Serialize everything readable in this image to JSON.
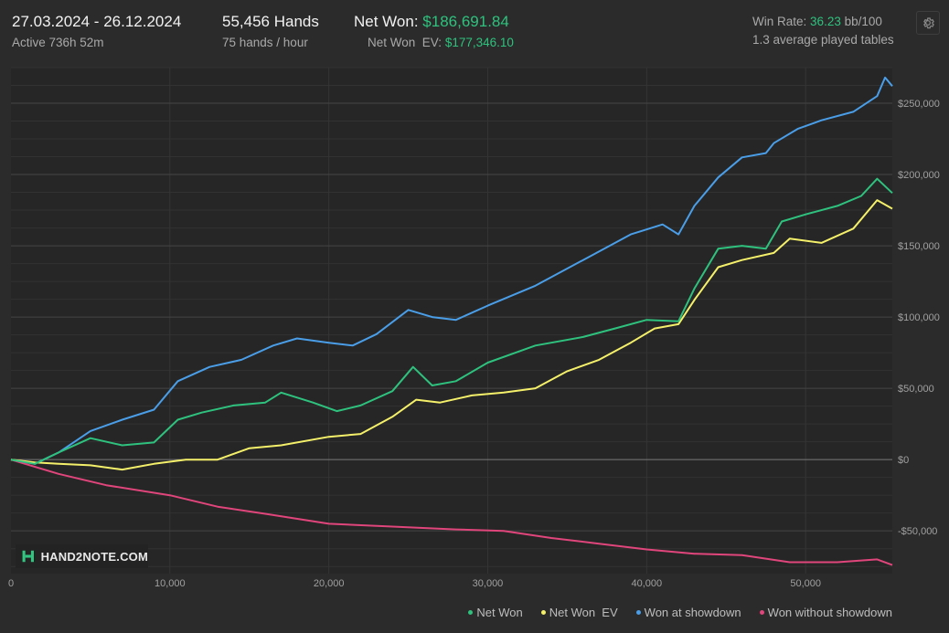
{
  "header": {
    "date_range": "27.03.2024 - 26.12.2024",
    "active_time": "Active 736h 52m",
    "hands_total": "55,456 Hands",
    "hands_rate": "75 hands / hour",
    "net_won_label": "Net Won:",
    "net_won_value": "$186,691.84",
    "net_won_ev_label": "Net Won  EV:",
    "net_won_ev_value": "$177,346.10",
    "win_rate_label": "Win Rate:",
    "win_rate_value": "36.23",
    "win_rate_unit": "bb/100",
    "avg_tables": "1.3 average played tables"
  },
  "logo": {
    "text": "HAND2NOTE.COM"
  },
  "colors": {
    "net_won": "#2ec27e",
    "net_won_ev": "#f5f06a",
    "showdown": "#4a9ee8",
    "non_showdown": "#e0457b",
    "positive": "#2ec27e"
  },
  "chart_data": {
    "type": "line",
    "xlim": [
      0,
      55456
    ],
    "ylim": [
      -80000,
      275000
    ],
    "x_ticks": [
      0,
      10000,
      20000,
      30000,
      40000,
      50000
    ],
    "x_tick_labels": [
      "0",
      "10,000",
      "20,000",
      "30,000",
      "40,000",
      "50,000"
    ],
    "y_ticks": [
      -50000,
      0,
      50000,
      100000,
      150000,
      200000,
      250000
    ],
    "y_tick_labels": [
      "-$50,000",
      "$0",
      "$50,000",
      "$100,000",
      "$150,000",
      "$200,000",
      "$250,000"
    ],
    "grid": true,
    "legend_position": "bottom-right",
    "series": [
      {
        "name": "Net Won",
        "color": "#2ec27e",
        "points": [
          [
            0,
            0
          ],
          [
            1500,
            -3000
          ],
          [
            3000,
            5000
          ],
          [
            5000,
            15000
          ],
          [
            7000,
            10000
          ],
          [
            9000,
            12000
          ],
          [
            10500,
            28000
          ],
          [
            12000,
            33000
          ],
          [
            14000,
            38000
          ],
          [
            16000,
            40000
          ],
          [
            17000,
            47000
          ],
          [
            19000,
            40000
          ],
          [
            20500,
            34000
          ],
          [
            22000,
            38000
          ],
          [
            24000,
            48000
          ],
          [
            25300,
            65000
          ],
          [
            26500,
            52000
          ],
          [
            28000,
            55000
          ],
          [
            30000,
            68000
          ],
          [
            33000,
            80000
          ],
          [
            36000,
            86000
          ],
          [
            38000,
            92000
          ],
          [
            40000,
            98000
          ],
          [
            42000,
            97000
          ],
          [
            43000,
            120000
          ],
          [
            44500,
            148000
          ],
          [
            46000,
            150000
          ],
          [
            47500,
            148000
          ],
          [
            48500,
            167000
          ],
          [
            50000,
            172000
          ],
          [
            52000,
            178000
          ],
          [
            53500,
            185000
          ],
          [
            54500,
            197000
          ],
          [
            55456,
            187000
          ]
        ]
      },
      {
        "name": "Net Won  EV",
        "color": "#f5f06a",
        "points": [
          [
            0,
            0
          ],
          [
            1500,
            -2000
          ],
          [
            3000,
            -3000
          ],
          [
            5000,
            -4000
          ],
          [
            7000,
            -7000
          ],
          [
            9000,
            -3000
          ],
          [
            11000,
            0
          ],
          [
            13000,
            0
          ],
          [
            15000,
            8000
          ],
          [
            17000,
            10000
          ],
          [
            20000,
            16000
          ],
          [
            22000,
            18000
          ],
          [
            24000,
            30000
          ],
          [
            25500,
            42000
          ],
          [
            27000,
            40000
          ],
          [
            29000,
            45000
          ],
          [
            31000,
            47000
          ],
          [
            33000,
            50000
          ],
          [
            35000,
            62000
          ],
          [
            37000,
            70000
          ],
          [
            39000,
            82000
          ],
          [
            40500,
            92000
          ],
          [
            42000,
            95000
          ],
          [
            43000,
            112000
          ],
          [
            44500,
            135000
          ],
          [
            46000,
            140000
          ],
          [
            48000,
            145000
          ],
          [
            49000,
            155000
          ],
          [
            51000,
            152000
          ],
          [
            53000,
            162000
          ],
          [
            54500,
            182000
          ],
          [
            55456,
            176000
          ]
        ]
      },
      {
        "name": "Won at showdown",
        "color": "#4a9ee8",
        "points": [
          [
            0,
            0
          ],
          [
            1500,
            -3000
          ],
          [
            3000,
            5000
          ],
          [
            5000,
            20000
          ],
          [
            7000,
            28000
          ],
          [
            9000,
            35000
          ],
          [
            10500,
            55000
          ],
          [
            12500,
            65000
          ],
          [
            14500,
            70000
          ],
          [
            16500,
            80000
          ],
          [
            18000,
            85000
          ],
          [
            20000,
            82000
          ],
          [
            21500,
            80000
          ],
          [
            23000,
            88000
          ],
          [
            25000,
            105000
          ],
          [
            26500,
            100000
          ],
          [
            28000,
            98000
          ],
          [
            30000,
            108000
          ],
          [
            33000,
            122000
          ],
          [
            36000,
            140000
          ],
          [
            39000,
            158000
          ],
          [
            41000,
            165000
          ],
          [
            42000,
            158000
          ],
          [
            43000,
            178000
          ],
          [
            44500,
            198000
          ],
          [
            46000,
            212000
          ],
          [
            47500,
            215000
          ],
          [
            48000,
            222000
          ],
          [
            49500,
            232000
          ],
          [
            51000,
            238000
          ],
          [
            53000,
            244000
          ],
          [
            54500,
            255000
          ],
          [
            55000,
            268000
          ],
          [
            55456,
            262000
          ]
        ]
      },
      {
        "name": "Won without showdown",
        "color": "#e0457b",
        "points": [
          [
            0,
            0
          ],
          [
            3000,
            -10000
          ],
          [
            6000,
            -18000
          ],
          [
            10000,
            -25000
          ],
          [
            13000,
            -33000
          ],
          [
            16000,
            -38000
          ],
          [
            20000,
            -45000
          ],
          [
            24000,
            -47000
          ],
          [
            28000,
            -49000
          ],
          [
            31000,
            -50000
          ],
          [
            34000,
            -55000
          ],
          [
            37000,
            -59000
          ],
          [
            40000,
            -63000
          ],
          [
            43000,
            -66000
          ],
          [
            46000,
            -67000
          ],
          [
            49000,
            -72000
          ],
          [
            52000,
            -72000
          ],
          [
            54500,
            -70000
          ],
          [
            55456,
            -74000
          ]
        ]
      }
    ]
  }
}
